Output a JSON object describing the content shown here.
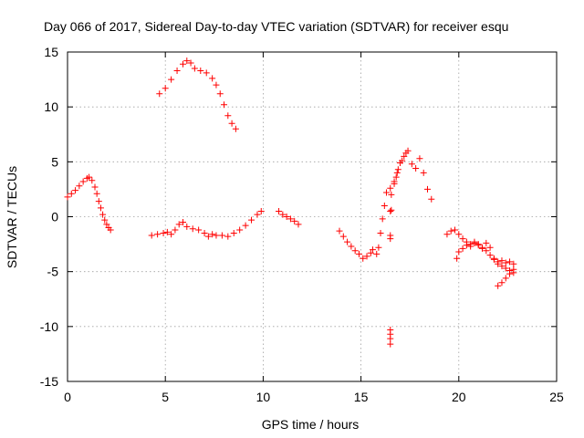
{
  "chart_data": {
    "type": "scatter",
    "title": "Day 066 of 2017, Sidereal Day-to-day VTEC variation (SDTVAR) for receiver esqu",
    "xlabel": "GPS time / hours",
    "ylabel": "SDTVAR / TECUs",
    "xlim": [
      0,
      25
    ],
    "ylim": [
      -15,
      15
    ],
    "xticks": [
      0,
      5,
      10,
      15,
      20,
      25
    ],
    "yticks": [
      -15,
      -10,
      -5,
      0,
      5,
      10,
      15
    ],
    "grid": true,
    "marker": "+",
    "color": "#ff0000",
    "series": [
      {
        "name": "seg1",
        "x": [
          0.0,
          0.2,
          0.4,
          0.6,
          0.8,
          1.0,
          1.1,
          1.25,
          1.4,
          1.5,
          1.6,
          1.7,
          1.8,
          1.9,
          2.0,
          2.1,
          2.2
        ],
        "y": [
          1.8,
          2.1,
          2.4,
          2.8,
          3.2,
          3.5,
          3.6,
          3.3,
          2.7,
          2.1,
          1.4,
          0.8,
          0.2,
          -0.3,
          -0.7,
          -1.0,
          -1.2
        ]
      },
      {
        "name": "seg2",
        "x": [
          4.3,
          4.6,
          4.9,
          5.1,
          5.3,
          5.5,
          5.7,
          5.9,
          6.1,
          6.4,
          6.7,
          7.0,
          7.2,
          7.4,
          7.6,
          7.9,
          8.2,
          8.5,
          8.8,
          9.1,
          9.4,
          9.7,
          9.9
        ],
        "y": [
          -1.7,
          -1.6,
          -1.5,
          -1.4,
          -1.6,
          -1.2,
          -0.7,
          -0.5,
          -0.9,
          -1.1,
          -1.2,
          -1.5,
          -1.8,
          -1.6,
          -1.7,
          -1.7,
          -1.8,
          -1.5,
          -1.2,
          -0.8,
          -0.3,
          0.2,
          0.5
        ]
      },
      {
        "name": "seg3",
        "x": [
          4.7,
          5.0,
          5.3,
          5.6,
          5.9,
          6.1,
          6.3,
          6.5,
          6.8,
          7.1,
          7.4,
          7.6,
          7.8,
          8.0,
          8.2,
          8.4,
          8.6
        ],
        "y": [
          11.2,
          11.7,
          12.5,
          13.3,
          13.9,
          14.2,
          14.0,
          13.5,
          13.3,
          13.1,
          12.6,
          12.0,
          11.2,
          10.2,
          9.2,
          8.5,
          8.0
        ]
      },
      {
        "name": "seg4",
        "x": [
          10.8,
          11.0,
          11.2,
          11.4,
          11.6,
          11.8
        ],
        "y": [
          0.5,
          0.2,
          0.0,
          -0.2,
          -0.4,
          -0.7
        ]
      },
      {
        "name": "seg5",
        "x": [
          13.9,
          14.1,
          14.3,
          14.5,
          14.7,
          14.9,
          15.1,
          15.3,
          15.5,
          15.6
        ],
        "y": [
          -1.3,
          -1.8,
          -2.3,
          -2.7,
          -3.1,
          -3.4,
          -3.8,
          -3.6,
          -3.3,
          -3.0
        ]
      },
      {
        "name": "seg6",
        "x": [
          15.8,
          15.9,
          16.0,
          16.1,
          16.2,
          16.3,
          16.5,
          16.7,
          16.8,
          16.9,
          17.0,
          17.2,
          17.4,
          17.6,
          17.8,
          18.0,
          18.2,
          18.4,
          18.6
        ],
        "y": [
          -3.4,
          -2.8,
          -1.5,
          -0.2,
          1.0,
          2.2,
          2.6,
          3.0,
          3.6,
          4.3,
          4.9,
          5.5,
          6.0,
          4.8,
          4.4,
          5.3,
          4.0,
          2.5,
          1.6
        ]
      },
      {
        "name": "seg7",
        "x": [
          16.5,
          16.5,
          16.5,
          16.5,
          16.5,
          16.5,
          16.5,
          16.55,
          16.55,
          16.7,
          16.85,
          17.1,
          17.3
        ],
        "y": [
          -10.3,
          -10.7,
          -11.1,
          -11.6,
          -1.7,
          -2.0,
          0.5,
          0.6,
          2.0,
          3.2,
          4.0,
          5.1,
          5.8
        ]
      },
      {
        "name": "seg8",
        "x": [
          19.4,
          19.6,
          19.8,
          20.0,
          20.2,
          20.4,
          20.6,
          20.8,
          21.0,
          21.2,
          21.4,
          21.6,
          21.8,
          22.0,
          22.2,
          22.4,
          22.6,
          22.8
        ],
        "y": [
          -1.6,
          -1.3,
          -1.2,
          -1.6,
          -2.0,
          -2.3,
          -2.5,
          -2.4,
          -2.6,
          -2.8,
          -3.1,
          -3.5,
          -3.9,
          -4.3,
          -4.5,
          -4.7,
          -4.9,
          -5.1
        ]
      },
      {
        "name": "seg9",
        "x": [
          19.9,
          20.0,
          20.2,
          20.4,
          20.6,
          20.8,
          21.0,
          21.2,
          21.4,
          21.6,
          21.8,
          22.0,
          22.2,
          22.4,
          22.6,
          22.8
        ],
        "y": [
          -3.8,
          -3.2,
          -2.9,
          -2.6,
          -2.7,
          -2.3,
          -2.5,
          -2.9,
          -2.4,
          -2.8,
          -3.8,
          -4.1,
          -4.0,
          -4.2,
          -4.1,
          -4.3
        ]
      },
      {
        "name": "seg10",
        "x": [
          22.0,
          22.2,
          22.4,
          22.6,
          22.8
        ],
        "y": [
          -6.3,
          -6.0,
          -5.6,
          -5.2,
          -4.8
        ]
      }
    ]
  }
}
